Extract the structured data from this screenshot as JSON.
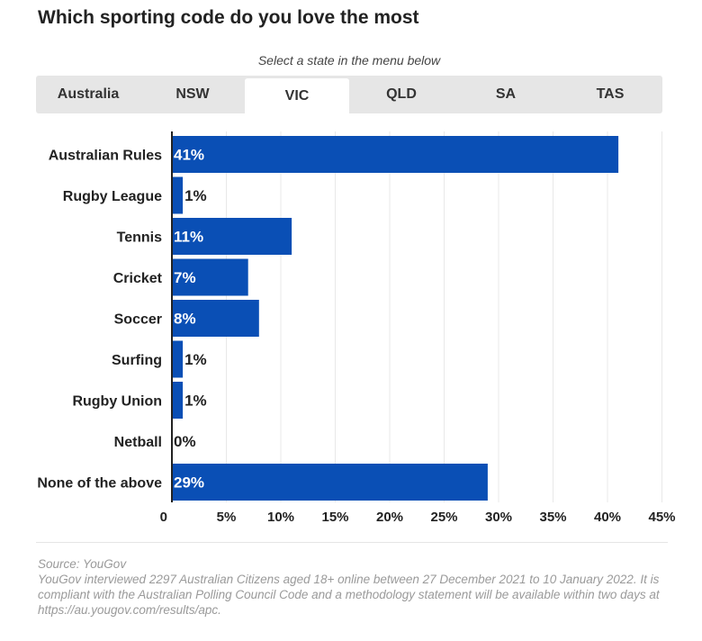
{
  "title": "Which sporting code do you love the most",
  "subtitle": "Select a state in the menu below",
  "tabs": [
    {
      "label": "Australia",
      "active": false
    },
    {
      "label": "NSW",
      "active": false
    },
    {
      "label": "VIC",
      "active": true
    },
    {
      "label": "QLD",
      "active": false
    },
    {
      "label": "SA",
      "active": false
    },
    {
      "label": "TAS",
      "active": false
    }
  ],
  "colors": {
    "bar": "#0a4fb5",
    "grid": "#e8e8e8",
    "axis": "#222222"
  },
  "chart_data": {
    "type": "bar",
    "orientation": "horizontal",
    "categories": [
      "Australian Rules",
      "Rugby League",
      "Tennis",
      "Cricket",
      "Soccer",
      "Surfing",
      "Rugby Union",
      "Netball",
      "None of the above"
    ],
    "values": [
      41,
      1,
      11,
      7,
      8,
      1,
      1,
      0,
      29
    ],
    "value_labels": [
      "41%",
      "1%",
      "11%",
      "7%",
      "8%",
      "1%",
      "1%",
      "0%",
      "29%"
    ],
    "x_ticks": [
      0,
      5,
      10,
      15,
      20,
      25,
      30,
      35,
      40,
      45
    ],
    "x_tick_labels": [
      "0",
      "5%",
      "10%",
      "15%",
      "20%",
      "25%",
      "30%",
      "35%",
      "40%",
      "45%"
    ],
    "xlim": [
      0,
      45
    ],
    "grid": true
  },
  "source": {
    "line1": "Source: YouGov",
    "line2": "YouGov interviewed 2297 Australian Citizens aged 18+ online between 27 December 2021 to 10 January 2022. It is compliant with the Australian Polling Council Code and a methodology statement will be available within two days at https://au.yougov.com/results/apc."
  }
}
